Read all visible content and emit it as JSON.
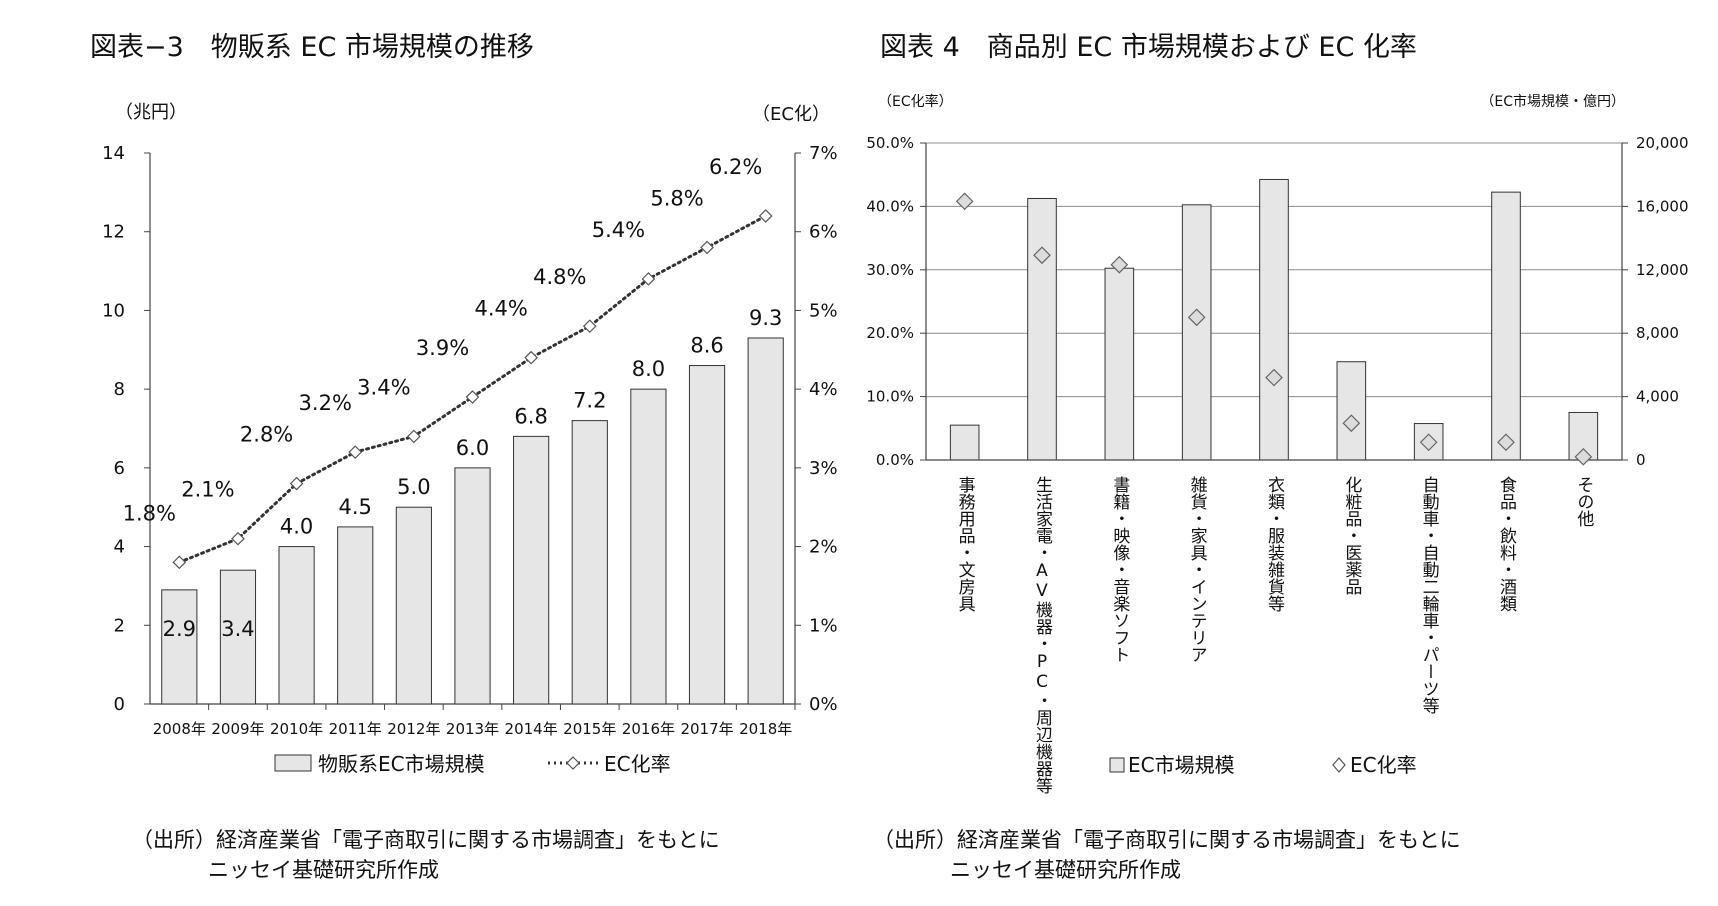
{
  "chart_data": [
    {
      "type": "bar+line",
      "title": "図表−3　物販系 EC 市場規模の推移",
      "left_unit": "（兆円）",
      "right_unit": "（EC化）",
      "categories": [
        "2008年",
        "2009年",
        "2010年",
        "2011年",
        "2012年",
        "2013年",
        "2014年",
        "2015年",
        "2016年",
        "2017年",
        "2018年"
      ],
      "bar_values": [
        2.9,
        3.4,
        4.0,
        4.5,
        5.0,
        6.0,
        6.8,
        7.2,
        8.0,
        8.6,
        9.3
      ],
      "bar_labels": [
        "2.9",
        "3.4",
        "4.0",
        "4.5",
        "5.0",
        "6.0",
        "6.8",
        "7.2",
        "8.0",
        "8.6",
        "9.3"
      ],
      "line_values": [
        1.8,
        2.1,
        2.8,
        3.2,
        3.4,
        3.9,
        4.4,
        4.8,
        5.4,
        5.8,
        6.2
      ],
      "line_labels": [
        "1.8%",
        "2.1%",
        "2.8%",
        "3.2%",
        "3.4%",
        "3.9%",
        "4.4%",
        "4.8%",
        "5.4%",
        "5.8%",
        "6.2%"
      ],
      "ylim_left": [
        0,
        14
      ],
      "ylim_right": [
        0,
        7
      ],
      "left_ticks": [
        "0",
        "2",
        "4",
        "6",
        "8",
        "10",
        "12",
        "14"
      ],
      "right_ticks": [
        "0%",
        "1%",
        "2%",
        "3%",
        "4%",
        "5%",
        "6%",
        "7%"
      ],
      "legend": {
        "bar": "物販系EC市場規模",
        "line": "EC化率"
      },
      "source_line1": "（出所）経済産業省「電子商取引に関する市場調査」をもとに",
      "source_line2": "ニッセイ基礎研究所作成"
    },
    {
      "type": "bar+scatter",
      "title": "図表 4　商品別 EC 市場規模および EC 化率",
      "left_unit": "（EC化率）",
      "right_unit": "（EC市場規模・億円）",
      "categories": [
        "事務用品・文房具",
        "生活家電・AV機器・PC・周辺機器等",
        "書籍・映像・音楽ソフト",
        "雑貨・家具・インテリア",
        "衣類・服装雑貨等",
        "化粧品・医薬品",
        "自動車・自動二輪車・パーツ等",
        "食品・飲料・酒類",
        "その他"
      ],
      "bar_values": [
        2200,
        16500,
        12100,
        16100,
        17700,
        6200,
        2300,
        16900,
        3000
      ],
      "rate_values": [
        40.8,
        32.3,
        30.8,
        22.5,
        13.0,
        5.8,
        2.8,
        2.8,
        0.5
      ],
      "ylim_left": [
        0,
        50
      ],
      "ylim_right": [
        0,
        20000
      ],
      "left_ticks": [
        "0.0%",
        "10.0%",
        "20.0%",
        "30.0%",
        "40.0%",
        "50.0%"
      ],
      "right_ticks": [
        "0",
        "4,000",
        "8,000",
        "12,000",
        "16,000",
        "20,000"
      ],
      "legend": {
        "bar": "EC市場規模",
        "marker": "EC化率"
      },
      "source_line1": "（出所）経済産業省「電子商取引に関する市場調査」をもとに",
      "source_line2": "ニッセイ基礎研究所作成"
    }
  ]
}
